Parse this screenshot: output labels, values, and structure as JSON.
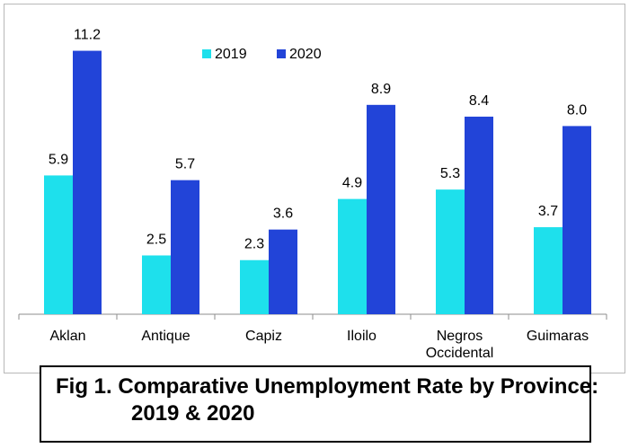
{
  "chart_data": {
    "type": "bar",
    "categories": [
      "Aklan",
      "Antique",
      "Capiz",
      "Iloilo",
      "Negros Occidental",
      "Guimaras"
    ],
    "series": [
      {
        "name": "2019",
        "values": [
          5.9,
          2.5,
          2.3,
          4.9,
          5.3,
          3.7
        ],
        "color": "#1ee0ec"
      },
      {
        "name": "2020",
        "values": [
          11.2,
          5.7,
          3.6,
          8.9,
          8.4,
          8.0
        ],
        "color": "#2244d8"
      }
    ],
    "data_labels": true,
    "legend_position": "top",
    "grid": false,
    "ylim": [
      0,
      12.5
    ]
  },
  "caption": {
    "line1": "Fig 1. Comparative Unemployment Rate by Province:",
    "line2": "2019 & 2020"
  }
}
